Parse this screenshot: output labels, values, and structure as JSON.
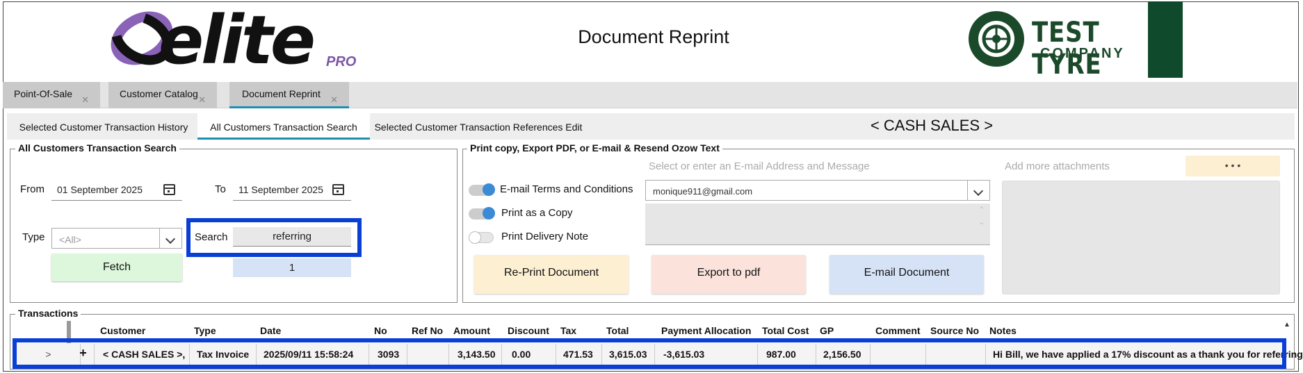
{
  "header": {
    "brand": "elite",
    "brand_sub": "PRO",
    "page_title": "Document Reprint",
    "company_line1": "TEST TYRE",
    "company_line2": "COMPANY"
  },
  "main_tabs": [
    {
      "label": "Point-Of-Sale"
    },
    {
      "label": "Customer Catalog"
    },
    {
      "label": "Document Reprint"
    }
  ],
  "sub_tabs": [
    {
      "label": "Selected Customer Transaction History"
    },
    {
      "label": "All Customers Transaction Search"
    },
    {
      "label": "Selected Customer Transaction References Edit"
    }
  ],
  "customer_label": "< CASH SALES >",
  "search_panel": {
    "legend": "All Customers Transaction Search",
    "from_label": "From",
    "from_value": "01 September 2025",
    "to_label": "To",
    "to_value": "11 September 2025",
    "type_label": "Type",
    "type_value": "<All>",
    "search_label": "Search",
    "search_value": "referring",
    "fetch_label": "Fetch",
    "result_count": "1"
  },
  "print_panel": {
    "legend": "Print copy, Export PDF, or E-mail & Resend Ozow Text",
    "email_hint": "Select or enter an E-mail Address and Message",
    "attach_hint": "Add more attachments",
    "more_label": "• • •",
    "toggles": [
      {
        "label": "E-mail Terms and Conditions",
        "on": true
      },
      {
        "label": "Print as a Copy",
        "on": true
      },
      {
        "label": "Print Delivery Note",
        "on": false
      }
    ],
    "email_value": "monique911@gmail.com",
    "reprint_label": "Re-Print Document",
    "export_label": "Export to pdf",
    "email_doc_label": "E-mail Document"
  },
  "transactions": {
    "legend": "Transactions",
    "columns": [
      "Customer",
      "Type",
      "Date",
      "No",
      "Ref No",
      "Amount",
      "Discount",
      "Tax",
      "Total",
      "Payment Allocation",
      "Total Cost",
      "GP",
      "Comment",
      "Source No",
      "Notes"
    ],
    "row": {
      "expand": ">",
      "add": "+",
      "customer": "< CASH SALES >,",
      "type": "Tax Invoice",
      "date": "2025/09/11 15:58:24",
      "no": "3093",
      "ref_no": "",
      "amount": "3,143.50",
      "discount": "0.00",
      "tax": "471.53",
      "total": "3,615.03",
      "payment_allocation": "-3,615.03",
      "total_cost": "987.00",
      "gp": "2,156.50",
      "comment": "",
      "source_no": "",
      "notes": "Hi Bill, we have applied a 17% discount as a thank you for referring"
    }
  },
  "colors": {
    "accent": "#1a8fb0",
    "highlight": "#0a3fd6",
    "fetch_bg": "#dcf7dc",
    "reprint_bg": "#fdf0d2",
    "export_bg": "#fbe3dc",
    "email_bg": "#d6e3f7"
  }
}
